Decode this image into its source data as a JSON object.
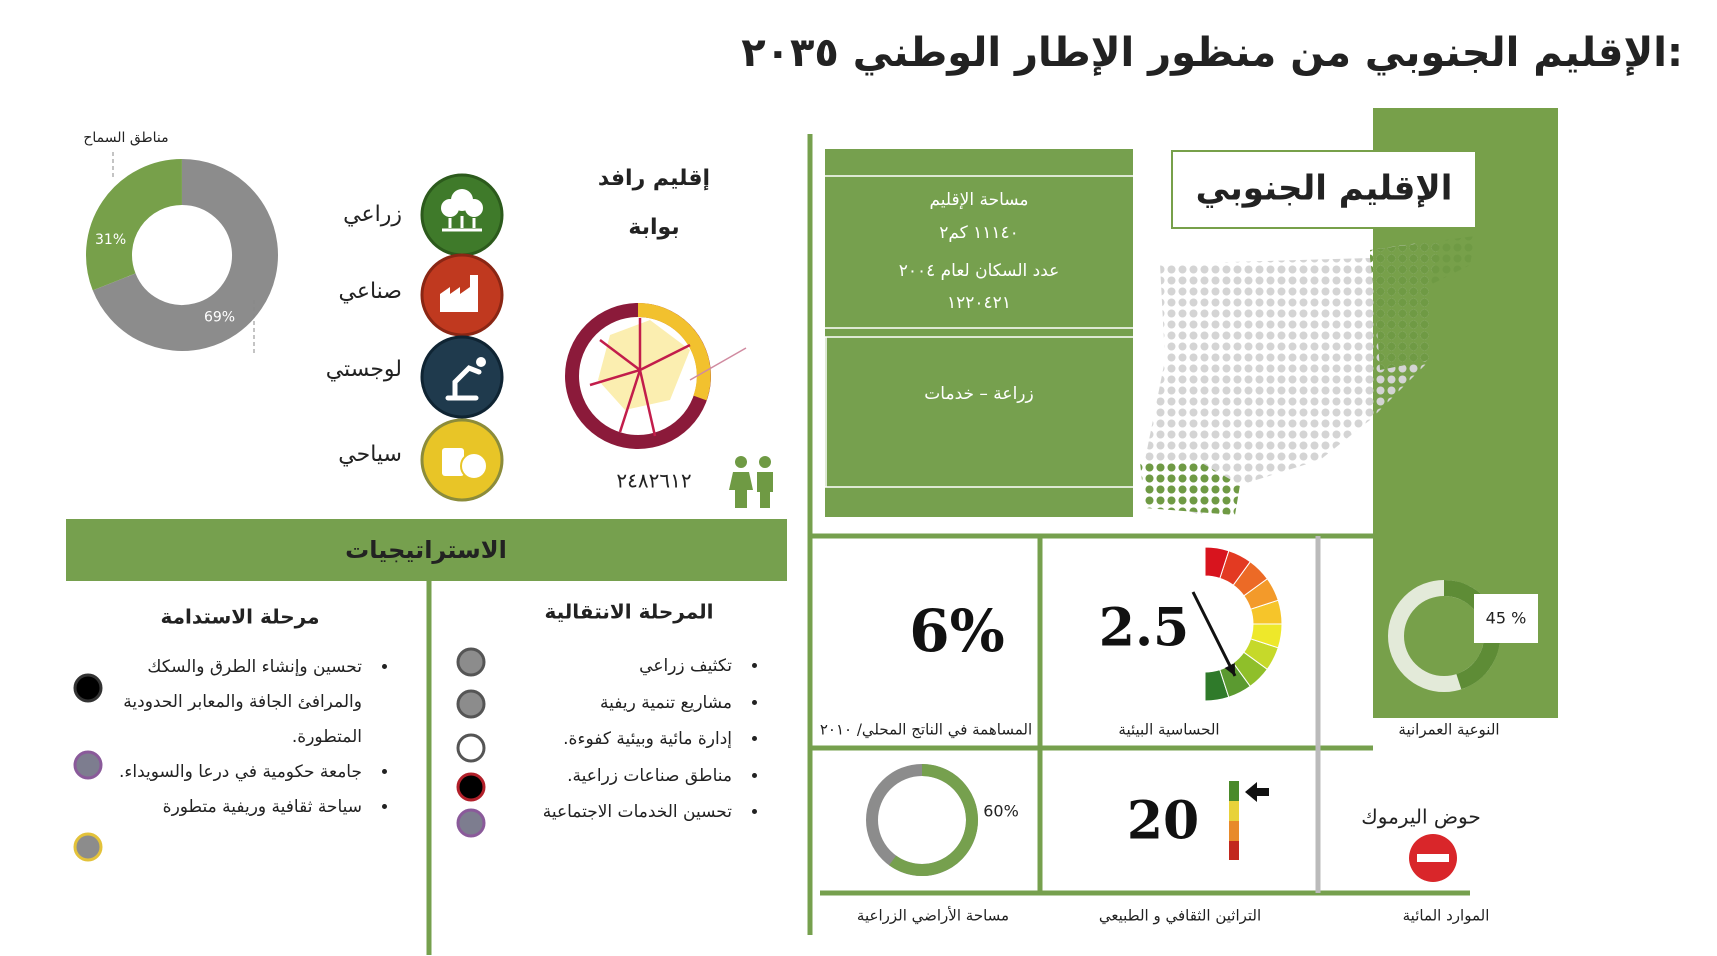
{
  "header": {
    "title": "الإقليم الجنوبي من منظور الإطار الوطني ٢٠٣٥:"
  },
  "permit_zones": {
    "label": "مناطق السماح",
    "values": [
      31,
      69
    ],
    "value_labels": [
      "31%",
      "69%"
    ],
    "colors": [
      "#77a04a",
      "#8c8c8c"
    ]
  },
  "sectors": [
    {
      "label": "زراعي"
    },
    {
      "label": "صناعي"
    },
    {
      "label": "لوجستي"
    },
    {
      "label": "سياحي"
    }
  ],
  "region_role": {
    "type": "إقليم رافد",
    "role": "بوابة",
    "population": "٢٤٨٢٦١٢"
  },
  "region_card": {
    "title": "الإقليم الجنوبي",
    "area_label": "مساحة الإقليم",
    "area_value": "١١١٤٠ كم٢",
    "population_label": "عدد السكان لعام ٢٠٠٤",
    "population_value": "١٢٢٠٤٢١",
    "economy": "زراعة – خدمات"
  },
  "strategies": {
    "title": "الاستراتيجيات",
    "phases": [
      {
        "title": "مرحلة الاستدامة",
        "items": [
          "تحسين وإنشاء الطرق والسكك والمرافئ الجافة والمعابر الحدودية المتطورة.",
          "جامعة حكومية في درعا والسويداء.",
          "سياحة ثقافية وريفية متطورة"
        ]
      },
      {
        "title": "المرحلة الانتقالية",
        "items": [
          "تكثيف زراعي",
          "مشاريع تنمية ريفية",
          "إدارة مائية وبيئية كفوءة.",
          "مناطق صناعات زراعية.",
          "تحسين الخدمات الاجتماعية"
        ]
      }
    ]
  },
  "indicators": {
    "gdp_share": {
      "value": 6,
      "label": "6%",
      "caption": "المساهمة في الناتج المحلي/ ٢٠١٠"
    },
    "environmental_sensitivity": {
      "value": 2.5,
      "min": 1,
      "max": 10,
      "caption": "الحساسية البيئية"
    },
    "urban_quality": {
      "value": 45,
      "label": "45 %",
      "caption": "النوعية العمرانية"
    },
    "agricultural_land": {
      "value": 60,
      "label": "60%",
      "caption": "مساحة الأراضي الزراعية"
    },
    "heritage": {
      "value": 20,
      "caption": "التراثين الثقافي و الطبيعي"
    },
    "water": {
      "text": "حوض اليرموك",
      "caption": "الموارد المائية"
    }
  }
}
